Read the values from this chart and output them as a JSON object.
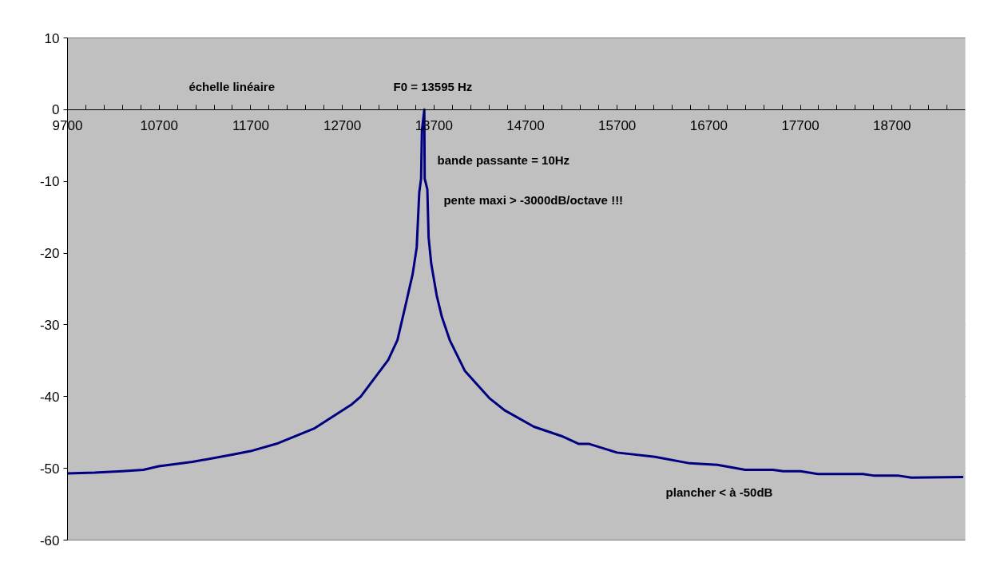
{
  "chart_data": {
    "type": "line",
    "x": [
      9700,
      9995,
      10295,
      10529,
      10697,
      11064,
      11498,
      11698,
      11999,
      12400,
      12801,
      12900,
      13201,
      13302,
      13395,
      13468,
      13512,
      13540,
      13560,
      13569,
      13595,
      13599,
      13628,
      13642,
      13671,
      13730,
      13787,
      13875,
      14037,
      14304,
      14471,
      14791,
      15093,
      15283,
      15396,
      15698,
      16114,
      16493,
      16794,
      17098,
      17399,
      17513,
      17702,
      17891,
      18383,
      18496,
      18760,
      18911,
      19478
    ],
    "series": [
      {
        "color": "#000080",
        "values": [
          -50.7,
          -50.6,
          -50.4,
          -50.2,
          -49.7,
          -49.1,
          -48.1,
          -47.6,
          -46.5,
          -44.4,
          -41.1,
          -40.0,
          -34.9,
          -32.1,
          -27.0,
          -22.9,
          -19.2,
          -11.5,
          -9.6,
          -2.9,
          0,
          -9.6,
          -11.1,
          -17.8,
          -21.5,
          -25.9,
          -28.9,
          -32.2,
          -36.4,
          -40.2,
          -41.9,
          -44.2,
          -45.5,
          -46.6,
          -46.6,
          -47.8,
          -48.4,
          -49.3,
          -49.5,
          -50.2,
          -50.2,
          -50.4,
          -50.4,
          -50.8,
          -50.8,
          -51.0,
          -51.0,
          -51.3,
          -51.2
        ]
      }
    ],
    "xlim": [
      9700,
      19500
    ],
    "ylim": [
      -60,
      10
    ],
    "yticks": [
      -60,
      -50,
      -40,
      -30,
      -20,
      -10,
      0,
      10
    ],
    "xticks": [
      9700,
      {
        "value": 9900,
        "label": null
      },
      {
        "value": 10100,
        "label": null
      },
      {
        "value": 10300,
        "label": null
      },
      {
        "value": 10500,
        "label": null
      },
      10700,
      {
        "value": 10900,
        "label": null
      },
      {
        "value": 11100,
        "label": null
      },
      {
        "value": 11300,
        "label": null
      },
      {
        "value": 11500,
        "label": null
      },
      11700,
      {
        "value": 11900,
        "label": null
      },
      {
        "value": 12100,
        "label": null
      },
      {
        "value": 12300,
        "label": null
      },
      {
        "value": 12500,
        "label": null
      },
      12700,
      {
        "value": 12900,
        "label": null
      },
      {
        "value": 13100,
        "label": null
      },
      {
        "value": 13300,
        "label": null
      },
      {
        "value": 13500,
        "label": null
      },
      13700,
      {
        "value": 13900,
        "label": null
      },
      {
        "value": 14100,
        "label": null
      },
      {
        "value": 14300,
        "label": null
      },
      {
        "value": 14500,
        "label": null
      },
      14700,
      {
        "value": 14900,
        "label": null
      },
      {
        "value": 15100,
        "label": null
      },
      {
        "value": 15300,
        "label": null
      },
      {
        "value": 15500,
        "label": null
      },
      15700,
      {
        "value": 15900,
        "label": null
      },
      {
        "value": 16100,
        "label": null
      },
      {
        "value": 16300,
        "label": null
      },
      {
        "value": 16500,
        "label": null
      },
      16700,
      {
        "value": 16900,
        "label": null
      },
      {
        "value": 17100,
        "label": null
      },
      {
        "value": 17300,
        "label": null
      },
      {
        "value": 17500,
        "label": null
      },
      17700,
      {
        "value": 17900,
        "label": null
      },
      {
        "value": 18100,
        "label": null
      },
      {
        "value": 18300,
        "label": null
      },
      {
        "value": 18500,
        "label": null
      },
      18700,
      {
        "value": 18900,
        "label": null
      },
      {
        "value": 19100,
        "label": null
      },
      {
        "value": 19300,
        "label": null
      }
    ],
    "grid": "y",
    "marker": "none",
    "line_style": "solid",
    "annotations": [
      "échelle linéaire",
      "F0 = 13595 Hz",
      "bande passante = 10Hz",
      "pente maxi > -3000dB/octave !!!",
      "plancher < à -50dB"
    ]
  }
}
